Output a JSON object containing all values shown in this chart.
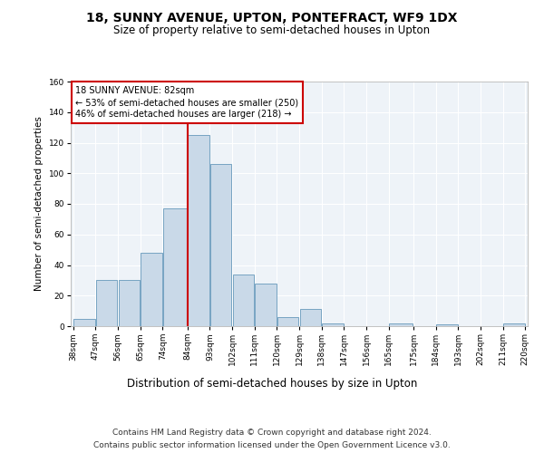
{
  "title": "18, SUNNY AVENUE, UPTON, PONTEFRACT, WF9 1DX",
  "subtitle": "Size of property relative to semi-detached houses in Upton",
  "xlabel": "Distribution of semi-detached houses by size in Upton",
  "ylabel": "Number of semi-detached properties",
  "footnote1": "Contains HM Land Registry data © Crown copyright and database right 2024.",
  "footnote2": "Contains public sector information licensed under the Open Government Licence v3.0.",
  "bin_labels": [
    "38sqm",
    "47sqm",
    "56sqm",
    "65sqm",
    "74sqm",
    "84sqm",
    "93sqm",
    "102sqm",
    "111sqm",
    "120sqm",
    "129sqm",
    "138sqm",
    "147sqm",
    "156sqm",
    "165sqm",
    "175sqm",
    "184sqm",
    "193sqm",
    "202sqm",
    "211sqm",
    "220sqm"
  ],
  "bar_values": [
    5,
    30,
    30,
    48,
    77,
    125,
    106,
    34,
    28,
    6,
    11,
    2,
    0,
    0,
    2,
    0,
    1,
    0,
    0,
    2,
    0
  ],
  "bin_edges": [
    38,
    47,
    56,
    65,
    74,
    84,
    93,
    102,
    111,
    120,
    129,
    138,
    147,
    156,
    165,
    175,
    184,
    193,
    202,
    211,
    220
  ],
  "bar_color": "#c9d9e8",
  "bar_edge_color": "#6699bb",
  "grid_color": "#c8d8e8",
  "vline_x": 84,
  "vline_color": "#cc0000",
  "annotation_title": "18 SUNNY AVENUE: 82sqm",
  "annotation_line1": "← 53% of semi-detached houses are smaller (250)",
  "annotation_line2": "46% of semi-detached houses are larger (218) →",
  "annotation_box_color": "#cc0000",
  "ylim": [
    0,
    160
  ],
  "yticks": [
    0,
    20,
    40,
    60,
    80,
    100,
    120,
    140,
    160
  ],
  "title_fontsize": 10,
  "subtitle_fontsize": 8.5,
  "ylabel_fontsize": 7.5,
  "xlabel_fontsize": 8.5,
  "tick_fontsize": 6.5,
  "annotation_fontsize": 7,
  "footnote_fontsize": 6.5
}
